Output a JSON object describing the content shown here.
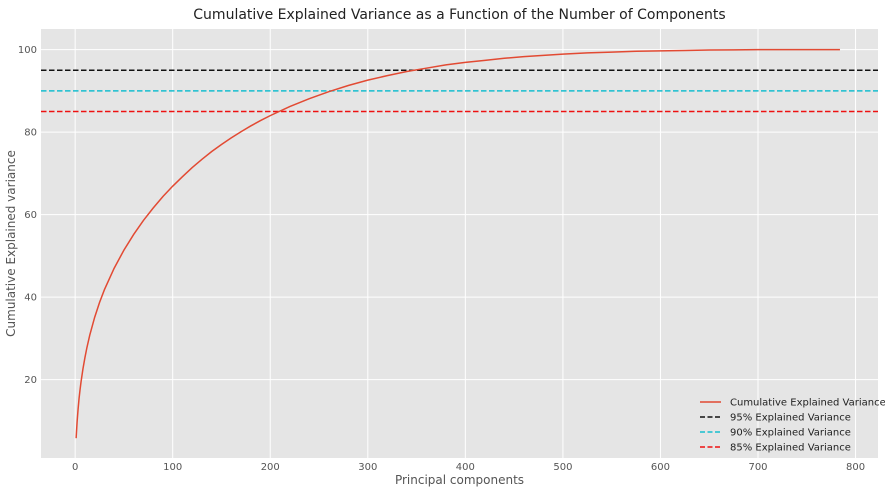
{
  "chart_data": {
    "type": "line",
    "title": "Cumulative Explained Variance as a Function of the Number of Components",
    "xlabel": "Principal components",
    "ylabel": "Cumulative Explained variance",
    "xlim": [
      -35,
      823
    ],
    "ylim": [
      1,
      105
    ],
    "xticks": [
      0,
      100,
      200,
      300,
      400,
      500,
      600,
      700,
      800
    ],
    "yticks": [
      20,
      40,
      60,
      80,
      100
    ],
    "grid": true,
    "legend_position": "bottom-right",
    "series": [
      {
        "name": "Cumulative Explained Variance",
        "color": "#e24a33",
        "style": "solid",
        "x": [
          1,
          2,
          3,
          4,
          5,
          6,
          8,
          10,
          12,
          15,
          20,
          25,
          30,
          40,
          50,
          60,
          70,
          80,
          90,
          100,
          110,
          120,
          130,
          140,
          150,
          160,
          170,
          180,
          190,
          200,
          220,
          240,
          260,
          280,
          300,
          320,
          340,
          360,
          380,
          400,
          420,
          440,
          460,
          480,
          500,
          525,
          550,
          575,
          600,
          625,
          650,
          675,
          700,
          725,
          750,
          784
        ],
        "y": [
          5.8,
          9.7,
          12.8,
          15.4,
          17.5,
          19.4,
          22.6,
          25.3,
          27.7,
          30.8,
          35.1,
          38.7,
          41.8,
          47.0,
          51.4,
          55.2,
          58.6,
          61.6,
          64.4,
          66.9,
          69.2,
          71.4,
          73.4,
          75.3,
          77.0,
          78.6,
          80.1,
          81.5,
          82.8,
          84.0,
          86.2,
          88.1,
          89.8,
          91.3,
          92.6,
          93.7,
          94.7,
          95.5,
          96.3,
          96.9,
          97.4,
          97.9,
          98.3,
          98.6,
          98.9,
          99.2,
          99.4,
          99.6,
          99.7,
          99.8,
          99.9,
          99.95,
          100.0,
          100.0,
          100.0,
          100.0
        ]
      },
      {
        "name": "95% Explained Variance",
        "color": "#111111",
        "style": "dashed",
        "hline": 95
      },
      {
        "name": "90% Explained Variance",
        "color": "#17becf",
        "style": "dashed",
        "hline": 90
      },
      {
        "name": "85% Explained Variance",
        "color": "#ee1111",
        "style": "dashed",
        "hline": 85
      }
    ]
  }
}
